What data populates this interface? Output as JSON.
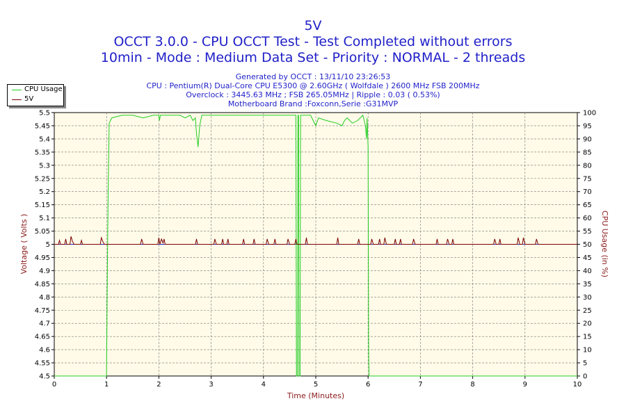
{
  "chart_data": {
    "type": "line",
    "title": "5V",
    "subtitle1": "OCCT 3.0.0 - CPU OCCT Test - Test Completed without errors",
    "subtitle2": "10min - Mode : Medium Data Set - Priority : NORMAL - 2 threads",
    "info": [
      "Generated by OCCT : 13/11/10 23:26:53",
      "CPU : Pentium(R) Dual-Core CPU E5300 @ 2.60GHz ( Wolfdale ) 2600 MHz FSB 200MHz",
      "Overclock : 3445.63 MHz ; FSB 265.05MHz | Ripple : 0.03 ( 0.53%)",
      "Motherboard Brand :Foxconn,Serie :G31MVP"
    ],
    "xlabel": "Time (Minutes)",
    "ylabel": "Voltage ( Volts )",
    "y2label": "CPU Usage (in %)",
    "xlim": [
      0,
      10
    ],
    "ylim": [
      4.5,
      5.5
    ],
    "y2lim": [
      0,
      100
    ],
    "xticks": [
      "0",
      "1",
      "2",
      "3",
      "4",
      "5",
      "6",
      "7",
      "8",
      "9",
      "10"
    ],
    "yticks": [
      "4.5",
      "4.55",
      "4.6",
      "4.65",
      "4.7",
      "4.75",
      "4.8",
      "4.85",
      "4.9",
      "4.95",
      "5",
      "5.05",
      "5.1",
      "5.15",
      "5.2",
      "5.25",
      "5.3",
      "5.35",
      "5.4",
      "5.45",
      "5.5"
    ],
    "y2ticks": [
      "0",
      "5",
      "10",
      "15",
      "20",
      "25",
      "30",
      "35",
      "40",
      "45",
      "50",
      "55",
      "60",
      "65",
      "70",
      "75",
      "80",
      "85",
      "90",
      "95",
      "100"
    ],
    "grid": true,
    "legend_position": "top-left",
    "colors": {
      "cpu": "#22cc22",
      "volt": "#7a0000",
      "title": "#1f1fc8",
      "axis_label": "#8b1a1a",
      "plot_bg": "#fffbe8"
    },
    "series": [
      {
        "name": "CPU Usage",
        "axis": "right",
        "x": [
          0,
          1.0,
          1.0,
          1.02,
          1.03,
          1.05,
          1.1,
          1.3,
          1.5,
          1.7,
          1.9,
          2.0,
          2.01,
          2.03,
          2.2,
          2.4,
          2.5,
          2.6,
          2.65,
          2.7,
          2.72,
          2.75,
          2.78,
          2.82,
          2.9,
          3.0,
          3.2,
          3.4,
          3.6,
          3.8,
          4.0,
          4.2,
          4.4,
          4.6,
          4.62,
          4.63,
          4.65,
          4.66,
          4.67,
          4.68,
          4.7,
          4.71,
          4.72,
          4.8,
          4.9,
          4.95,
          5.0,
          5.05,
          5.2,
          5.4,
          5.5,
          5.55,
          5.6,
          5.7,
          5.8,
          5.9,
          5.95,
          5.97,
          5.98,
          6.0,
          6.01,
          6.02,
          10
        ],
        "values": [
          0,
          0,
          3,
          50,
          70,
          96,
          98,
          99,
          99,
          98,
          99,
          99,
          97,
          99,
          99,
          99,
          98,
          99,
          97,
          98,
          92,
          87,
          95,
          99,
          99,
          99,
          99,
          99,
          99,
          99,
          99,
          99,
          99,
          99,
          99,
          0,
          0,
          99,
          99,
          0,
          0,
          99,
          99,
          99,
          99,
          97,
          95,
          98,
          97,
          96,
          95,
          97,
          98,
          96,
          97,
          99,
          95,
          90,
          98,
          87,
          9,
          0,
          0
        ]
      },
      {
        "name": "5V",
        "axis": "left",
        "x": [
          0,
          0.08,
          0.1,
          0.12,
          0.2,
          0.22,
          0.24,
          0.3,
          0.32,
          0.35,
          0.38,
          0.5,
          0.52,
          0.54,
          0.88,
          0.9,
          0.93,
          0.96,
          1.0,
          1.65,
          1.67,
          1.7,
          1.98,
          2.0,
          2.02,
          2.05,
          2.08,
          2.1,
          2.12,
          2.7,
          2.72,
          2.74,
          3.05,
          3.07,
          3.1,
          3.2,
          3.22,
          3.24,
          3.3,
          3.32,
          3.34,
          3.6,
          3.62,
          3.64,
          3.8,
          3.82,
          3.84,
          4.05,
          4.07,
          4.1,
          4.2,
          4.22,
          4.24,
          4.45,
          4.47,
          4.5,
          4.6,
          4.62,
          4.64,
          4.8,
          4.82,
          4.84,
          5.4,
          5.42,
          5.44,
          5.8,
          5.82,
          5.84,
          6.05,
          6.07,
          6.1,
          6.2,
          6.22,
          6.24,
          6.3,
          6.32,
          6.35,
          6.5,
          6.52,
          6.54,
          6.6,
          6.62,
          6.64,
          6.85,
          6.87,
          6.9,
          7.3,
          7.32,
          7.34,
          7.5,
          7.52,
          7.55,
          7.6,
          7.62,
          7.64,
          8.4,
          8.42,
          8.45,
          8.5,
          8.52,
          8.54,
          8.85,
          8.87,
          8.9,
          8.95,
          8.97,
          9.0,
          9.2,
          9.22,
          9.25,
          10
        ],
        "values": [
          5,
          5,
          5.015,
          5,
          5,
          5.02,
          5,
          5,
          5.03,
          5.01,
          5,
          5,
          5.015,
          5,
          5,
          5.025,
          5.01,
          5,
          5,
          5,
          5.02,
          5,
          5,
          5.025,
          5,
          5.02,
          5.005,
          5.02,
          5,
          5,
          5.02,
          5,
          5,
          5.02,
          5,
          5,
          5.02,
          5,
          5,
          5.02,
          5,
          5,
          5.02,
          5,
          5,
          5.02,
          5,
          5,
          5.02,
          5,
          5,
          5.02,
          5,
          5,
          5.02,
          5,
          5,
          5.02,
          5,
          5,
          5.025,
          5,
          5,
          5.025,
          5,
          5,
          5.02,
          5,
          5,
          5.02,
          5,
          5,
          5.02,
          5,
          5,
          5.025,
          5,
          5,
          5.02,
          5,
          5,
          5.02,
          5,
          5,
          5.02,
          5,
          5,
          5.02,
          5,
          5,
          5.02,
          5,
          5,
          5.02,
          5,
          5,
          5.02,
          5,
          5,
          5.02,
          5,
          5,
          5.025,
          5,
          5,
          5.025,
          5,
          5,
          5.02,
          5,
          5
        ]
      }
    ]
  }
}
